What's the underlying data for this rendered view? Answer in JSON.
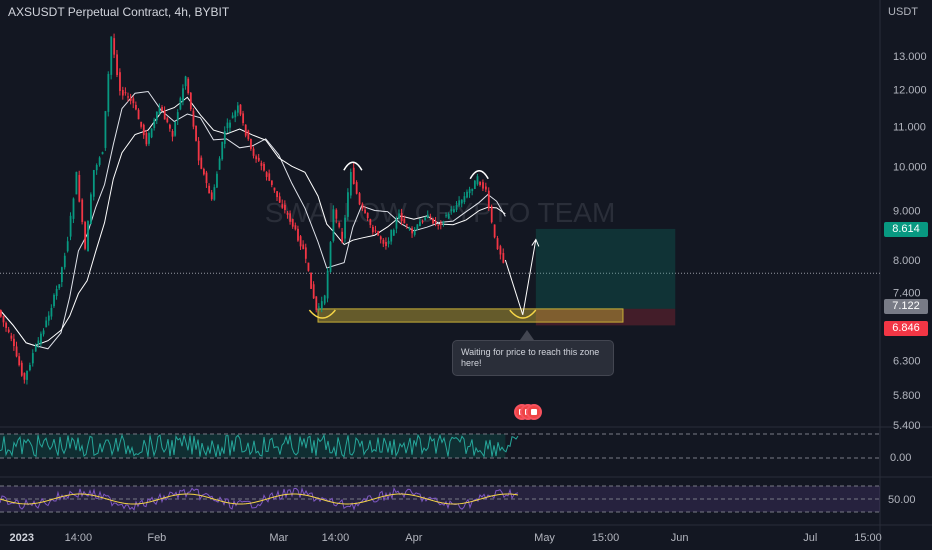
{
  "header": {
    "title": "AXSUSDT Perpetual Contract, 4h, BYBIT",
    "currency": "USDT"
  },
  "watermark": "SWALLOW CRYPTO TEAM",
  "tooltip": {
    "text": "Waiting for price to reach this zone here!"
  },
  "price_tags": {
    "target": {
      "value": "8.614",
      "color": "#089981"
    },
    "entry": {
      "value": "7.122",
      "color": "#787b86"
    },
    "stop": {
      "value": "6.846",
      "color": "#f23645"
    }
  },
  "icons": {
    "events": "us-flag-icon"
  },
  "chart_data": [
    {
      "type": "candlestick",
      "title": "AXSUSDT Perpetual Contract, 4h, BYBIT",
      "y_axis": {
        "scale": "log",
        "tick_labels": [
          "13.000",
          "12.000",
          "11.000",
          "10.000",
          "9.000",
          "8.000",
          "7.400",
          "6.300",
          "5.800",
          "5.400"
        ],
        "tick_values": [
          13.0,
          12.0,
          11.0,
          10.0,
          9.0,
          8.0,
          7.4,
          6.3,
          5.8,
          5.4
        ],
        "ylim": [
          5.4,
          14.0
        ]
      },
      "x_axis": {
        "tick_labels": [
          "2023",
          "14:00",
          "Feb",
          "Mar",
          "14:00",
          "Apr",
          "May",
          "15:00",
          "Jun",
          "Jul",
          "15:00"
        ],
        "tick_dates": [
          "2023-01-01",
          "2023-01-14",
          "2023-02-01",
          "2023-03-01",
          "2023-03-14",
          "2023-04-01",
          "2023-05-01",
          "2023-05-15",
          "2023-06-01",
          "2023-07-01",
          "2023-07-15"
        ],
        "range": [
          "2022-12-27",
          "2023-07-17"
        ]
      },
      "current_price_line": 7.75,
      "price_path": [
        [
          "2022-12-27",
          7.1
        ],
        [
          "2022-12-30",
          6.6
        ],
        [
          "2023-01-02",
          6.0
        ],
        [
          "2023-01-04",
          6.4
        ],
        [
          "2023-01-07",
          6.9
        ],
        [
          "2023-01-10",
          7.6
        ],
        [
          "2023-01-12",
          8.4
        ],
        [
          "2023-01-14",
          9.8
        ],
        [
          "2023-01-16",
          8.2
        ],
        [
          "2023-01-18",
          9.9
        ],
        [
          "2023-01-20",
          10.4
        ],
        [
          "2023-01-22",
          13.6
        ],
        [
          "2023-01-24",
          12.0
        ],
        [
          "2023-01-27",
          11.6
        ],
        [
          "2023-01-30",
          10.6
        ],
        [
          "2023-02-02",
          11.5
        ],
        [
          "2023-02-05",
          10.8
        ],
        [
          "2023-02-08",
          12.4
        ],
        [
          "2023-02-11",
          10.2
        ],
        [
          "2023-02-14",
          9.2
        ],
        [
          "2023-02-17",
          10.9
        ],
        [
          "2023-02-20",
          11.5
        ],
        [
          "2023-02-23",
          10.4
        ],
        [
          "2023-02-26",
          9.9
        ],
        [
          "2023-03-01",
          9.3
        ],
        [
          "2023-03-04",
          8.8
        ],
        [
          "2023-03-07",
          8.2
        ],
        [
          "2023-03-10",
          7.1
        ],
        [
          "2023-03-12",
          7.3
        ],
        [
          "2023-03-14",
          9.0
        ],
        [
          "2023-03-16",
          8.4
        ],
        [
          "2023-03-18",
          9.9
        ],
        [
          "2023-03-20",
          9.1
        ],
        [
          "2023-03-23",
          8.6
        ],
        [
          "2023-03-26",
          8.3
        ],
        [
          "2023-03-29",
          8.9
        ],
        [
          "2023-04-01",
          8.5
        ],
        [
          "2023-04-04",
          8.9
        ],
        [
          "2023-04-07",
          8.7
        ],
        [
          "2023-04-10",
          9.0
        ],
        [
          "2023-04-13",
          9.3
        ],
        [
          "2023-04-16",
          9.7
        ],
        [
          "2023-04-18",
          9.4
        ],
        [
          "2023-04-20",
          8.4
        ],
        [
          "2023-04-22",
          8.0
        ]
      ],
      "projection": [
        [
          "2023-04-22",
          8.0
        ],
        [
          "2023-04-26",
          7.02
        ],
        [
          "2023-04-29",
          8.4
        ]
      ],
      "buy_zone": {
        "from": "2023-03-10",
        "to": "2023-05-19",
        "low": 6.9,
        "high": 7.12
      },
      "position": {
        "from": "2023-04-29",
        "to": "2023-05-31",
        "entry": 7.122,
        "target": 8.614,
        "stop": 6.846
      },
      "pattern_arcs": [
        {
          "type": "head",
          "date": "2023-03-18",
          "price": 10.0
        },
        {
          "type": "head",
          "date": "2023-04-16",
          "price": 9.8
        },
        {
          "type": "bottom",
          "date": "2023-03-11",
          "price": 7.0
        },
        {
          "type": "bottom",
          "date": "2023-04-26",
          "price": 7.0
        }
      ]
    },
    {
      "type": "line",
      "name_hint": "oscillator panel 1",
      "y_axis": {
        "tick_labels": [
          "0.00"
        ],
        "tick_values": [
          0.0
        ]
      },
      "bands": [
        1.0,
        0.0
      ]
    },
    {
      "type": "line",
      "name_hint": "oscillator panel 2",
      "y_axis": {
        "tick_labels": [
          "50.00"
        ],
        "tick_values": [
          50.0
        ]
      },
      "bands": [
        70,
        50,
        30
      ]
    }
  ]
}
